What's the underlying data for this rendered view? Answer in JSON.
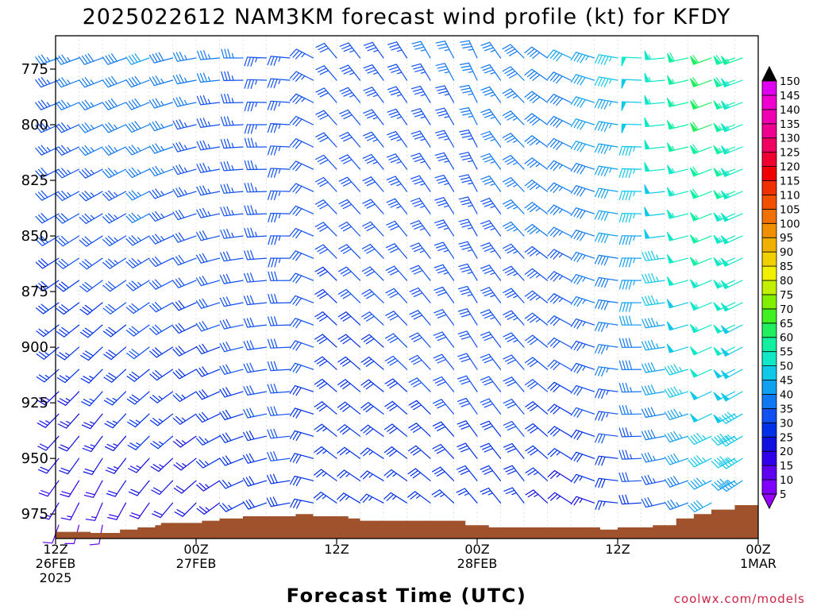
{
  "chart_data": {
    "type": "wind-barb time-height profile",
    "title": "2025022612 NAM3KM forecast wind profile (kt) for KFDY",
    "xlabel": "Forecast Time (UTC)",
    "ylabel": "",
    "credit": "coolwx.com/models",
    "y_scale": "linear pressure (hPa), decreasing upward",
    "ylim": [
      986,
      760
    ],
    "yticks": [
      "775",
      "800",
      "825",
      "850",
      "875",
      "900",
      "925",
      "950",
      "975"
    ],
    "x_range_hours": [
      0,
      60
    ],
    "xticks": [
      {
        "hour": 0,
        "lines": [
          "12Z",
          "26FEB",
          "2025"
        ]
      },
      {
        "hour": 12,
        "lines": [
          "00Z",
          "27FEB"
        ]
      },
      {
        "hour": 24,
        "lines": [
          "12Z"
        ]
      },
      {
        "hour": 36,
        "lines": [
          "00Z",
          "28FEB"
        ]
      },
      {
        "hour": 48,
        "lines": [
          "12Z"
        ]
      },
      {
        "hour": 60,
        "lines": [
          "00Z",
          "1MAR"
        ]
      }
    ],
    "colorbar": {
      "unit": "kt",
      "levels": [
        "5",
        "10",
        "15",
        "20",
        "25",
        "30",
        "35",
        "40",
        "45",
        "50",
        "55",
        "60",
        "65",
        "70",
        "75",
        "80",
        "85",
        "90",
        "95",
        "100",
        "105",
        "110",
        "115",
        "120",
        "125",
        "130",
        "135",
        "140",
        "145",
        "150"
      ],
      "colors": [
        "#7f00ff",
        "#6000f0",
        "#3000e8",
        "#1010e0",
        "#0030e8",
        "#1050f0",
        "#1078f0",
        "#10a0f0",
        "#10c8e8",
        "#10e8c8",
        "#10f0a0",
        "#20f060",
        "#40f020",
        "#80f000",
        "#c0f000",
        "#f0f000",
        "#f0d000",
        "#f0b000",
        "#f09000",
        "#f07000",
        "#f05000",
        "#f03000",
        "#f00000",
        "#f00030",
        "#f00060",
        "#f00090",
        "#f000b0",
        "#f000d0",
        "#e000f0"
      ]
    },
    "terrain": {
      "color": "#a0522d",
      "surface_pressure": [
        {
          "hour": 0,
          "hpa": 983
        },
        {
          "hour": 1.5,
          "hpa": 983
        },
        {
          "hour": 3,
          "hpa": 983.5
        },
        {
          "hour": 5.5,
          "hpa": 982
        },
        {
          "hour": 7,
          "hpa": 981
        },
        {
          "hour": 8.5,
          "hpa": 980
        },
        {
          "hour": 9,
          "hpa": 979
        },
        {
          "hour": 12,
          "hpa": 979
        },
        {
          "hour": 12.5,
          "hpa": 978
        },
        {
          "hour": 14,
          "hpa": 977
        },
        {
          "hour": 16,
          "hpa": 976
        },
        {
          "hour": 19,
          "hpa": 976
        },
        {
          "hour": 20.5,
          "hpa": 975
        },
        {
          "hour": 22,
          "hpa": 976
        },
        {
          "hour": 25,
          "hpa": 977
        },
        {
          "hour": 26,
          "hpa": 978
        },
        {
          "hour": 30,
          "hpa": 978
        },
        {
          "hour": 35,
          "hpa": 980
        },
        {
          "hour": 37,
          "hpa": 981
        },
        {
          "hour": 44,
          "hpa": 981
        },
        {
          "hour": 46.5,
          "hpa": 982
        },
        {
          "hour": 48,
          "hpa": 981
        },
        {
          "hour": 51,
          "hpa": 980
        },
        {
          "hour": 53,
          "hpa": 977
        },
        {
          "hour": 54.5,
          "hpa": 975
        },
        {
          "hour": 56,
          "hpa": 973
        },
        {
          "hour": 58,
          "hpa": 971
        },
        {
          "hour": 60,
          "hpa": 970
        }
      ]
    },
    "barbs": {
      "hours": [
        0,
        2,
        4,
        6,
        8,
        10,
        12,
        14,
        16,
        18,
        20,
        22,
        24,
        26,
        28,
        30,
        32,
        34,
        36,
        38,
        40,
        42,
        44,
        46,
        48,
        50,
        52,
        54,
        56,
        58,
        60
      ],
      "pressure_levels": [
        770,
        780,
        790,
        800,
        810,
        820,
        830,
        840,
        850,
        860,
        870,
        880,
        890,
        900,
        910,
        920,
        930,
        940,
        950,
        960,
        970,
        980
      ],
      "keyframes": [
        {
          "hour": 0,
          "low": {
            "dir": 200,
            "spd": 12
          },
          "high": {
            "dir": 250,
            "spd": 35
          }
        },
        {
          "hour": 4,
          "low": {
            "dir": 190,
            "spd": 11
          },
          "high": {
            "dir": 250,
            "spd": 38
          }
        },
        {
          "hour": 8,
          "low": {
            "dir": 205,
            "spd": 14
          },
          "high": {
            "dir": 250,
            "spd": 40
          }
        },
        {
          "hour": 12,
          "low": {
            "dir": 215,
            "spd": 16
          },
          "high": {
            "dir": 260,
            "spd": 36
          }
        },
        {
          "hour": 16,
          "low": {
            "dir": 235,
            "spd": 24
          },
          "high": {
            "dir": 270,
            "spd": 35
          }
        },
        {
          "hour": 20,
          "low": {
            "dir": 255,
            "spd": 28
          },
          "high": {
            "dir": 275,
            "spd": 34
          }
        },
        {
          "hour": 24,
          "low": {
            "dir": 300,
            "spd": 24
          },
          "high": {
            "dir": 320,
            "spd": 32
          }
        },
        {
          "hour": 28,
          "low": {
            "dir": 290,
            "spd": 23
          },
          "high": {
            "dir": 325,
            "spd": 34
          }
        },
        {
          "hour": 32,
          "low": {
            "dir": 300,
            "spd": 25
          },
          "high": {
            "dir": 330,
            "spd": 35
          }
        },
        {
          "hour": 36,
          "low": {
            "dir": 315,
            "spd": 25
          },
          "high": {
            "dir": 335,
            "spd": 36
          }
        },
        {
          "hour": 40,
          "low": {
            "dir": 325,
            "spd": 24
          },
          "high": {
            "dir": 315,
            "spd": 38
          }
        },
        {
          "hour": 44,
          "low": {
            "dir": 305,
            "spd": 18
          },
          "high": {
            "dir": 295,
            "spd": 40
          }
        },
        {
          "hour": 48,
          "low": {
            "dir": 275,
            "spd": 20
          },
          "high": {
            "dir": 280,
            "spd": 46
          }
        },
        {
          "hour": 52,
          "low": {
            "dir": 255,
            "spd": 26
          },
          "high": {
            "dir": 265,
            "spd": 54
          }
        },
        {
          "hour": 56,
          "low": {
            "dir": 240,
            "spd": 36
          },
          "high": {
            "dir": 250,
            "spd": 62
          }
        },
        {
          "hour": 60,
          "low": {
            "dir": 230,
            "spd": 40
          },
          "high": {
            "dir": 250,
            "spd": 55
          }
        }
      ]
    }
  }
}
